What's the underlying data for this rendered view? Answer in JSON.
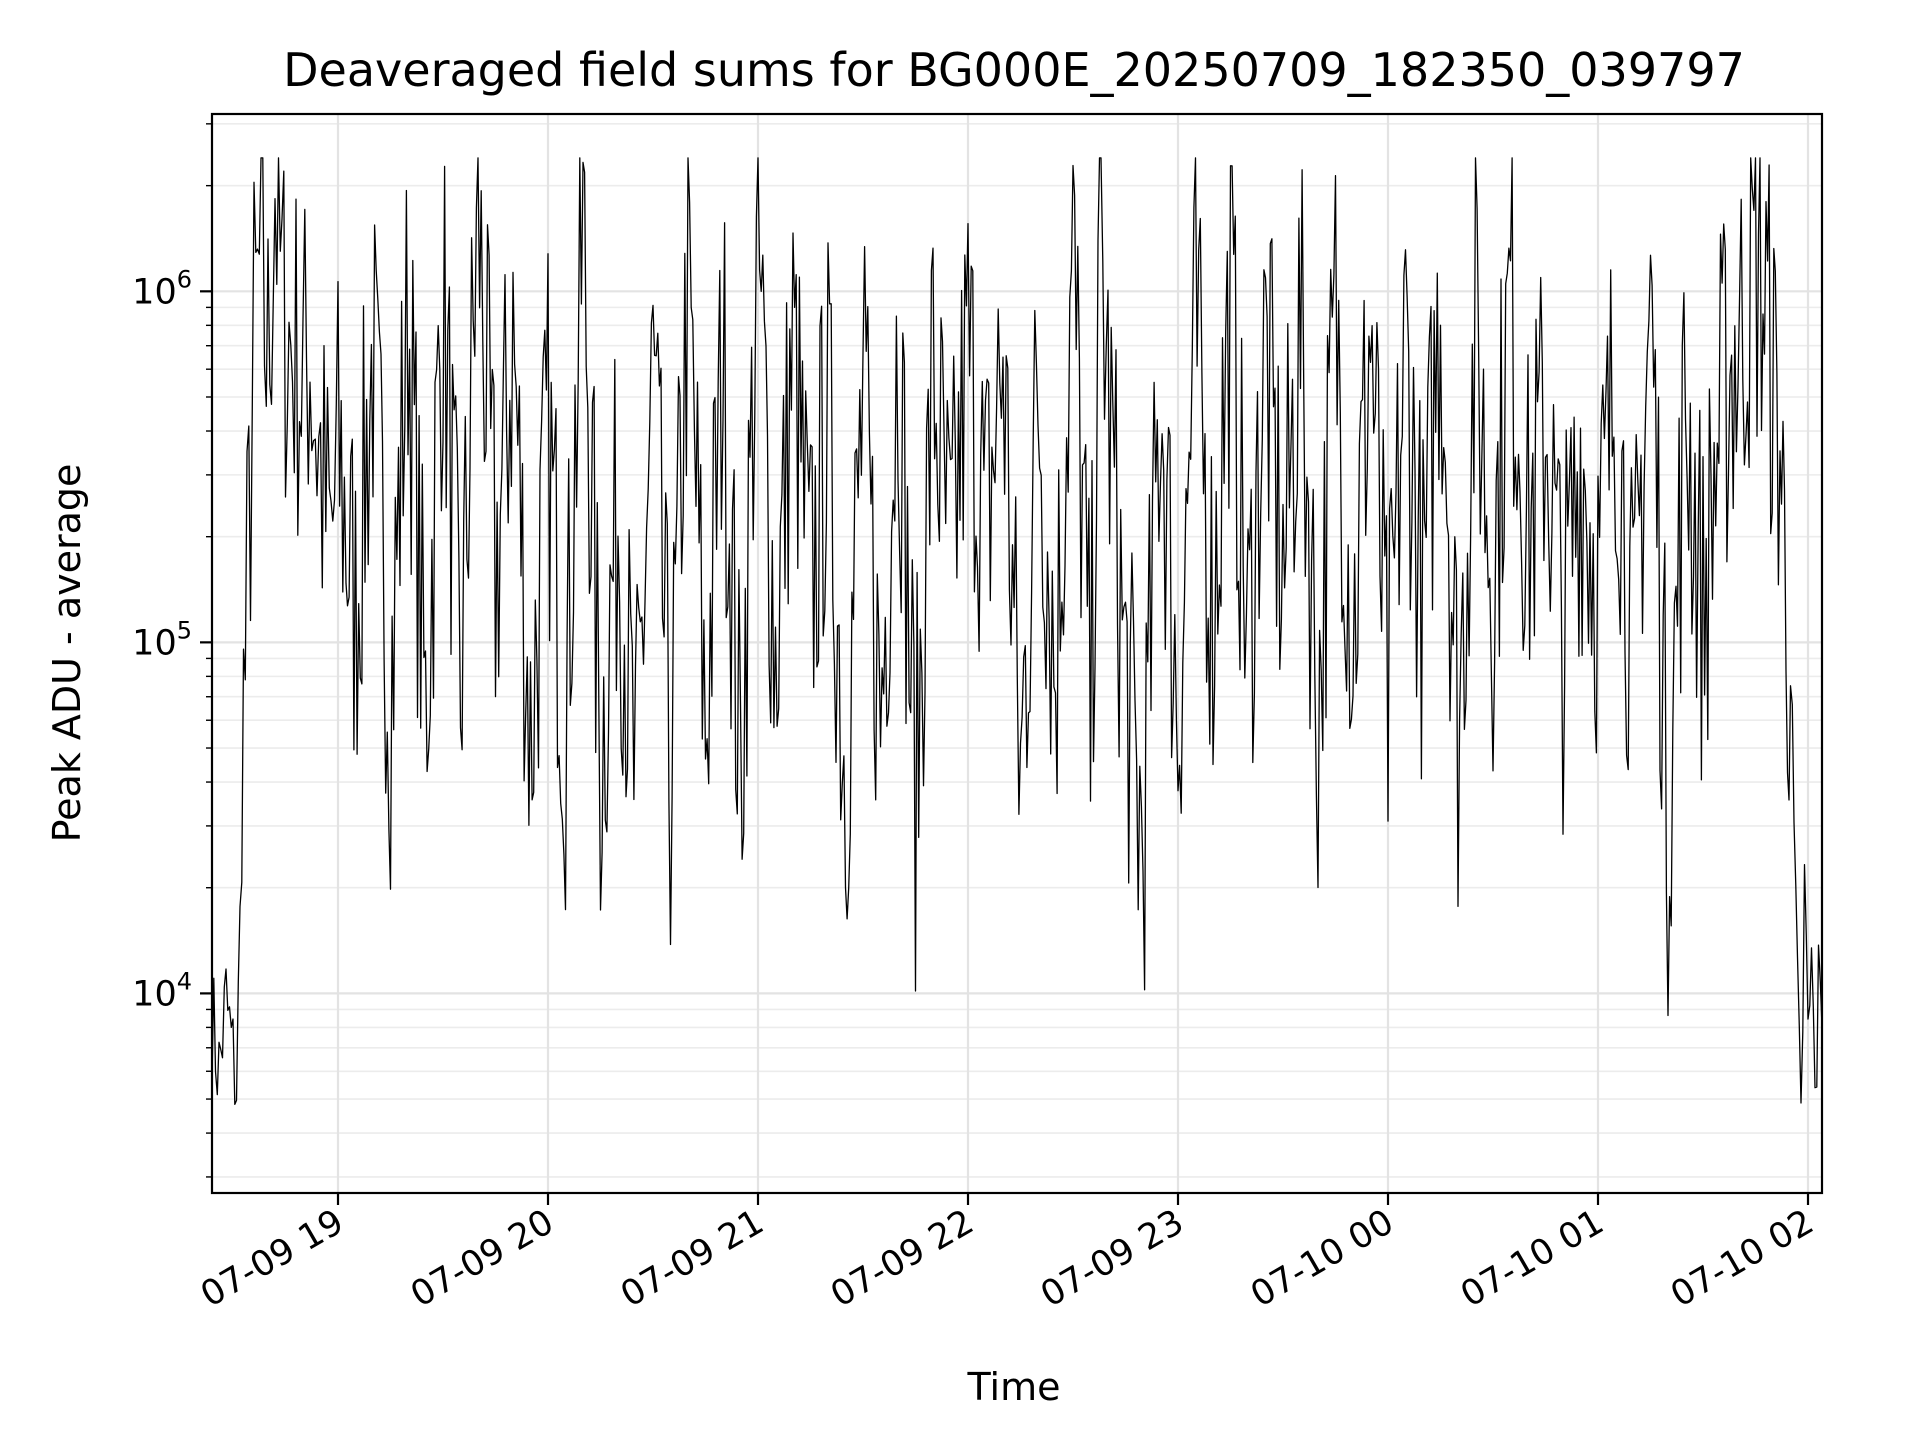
{
  "chart_data": {
    "type": "line",
    "title": "Deaveraged field sums for BG000E_20250709_182350_039797",
    "xlabel": "Time",
    "ylabel": "Peak ADU - average",
    "yscale": "log",
    "xlim": [
      "2025-07-09 18:24",
      "2025-07-10 02:04"
    ],
    "ylim": [
      2700,
      3200000
    ],
    "grid": true,
    "line_color": "#000000",
    "x_ticks": [
      {
        "value": "2025-07-09 19:00",
        "label": "07-09 19"
      },
      {
        "value": "2025-07-09 20:00",
        "label": "07-09 20"
      },
      {
        "value": "2025-07-09 21:00",
        "label": "07-09 21"
      },
      {
        "value": "2025-07-09 22:00",
        "label": "07-09 22"
      },
      {
        "value": "2025-07-09 23:00",
        "label": "07-09 23"
      },
      {
        "value": "2025-07-10 00:00",
        "label": "07-10 00"
      },
      {
        "value": "2025-07-10 01:00",
        "label": "07-10 01"
      },
      {
        "value": "2025-07-10 02:00",
        "label": "07-10 02"
      }
    ],
    "y_ticks": [
      {
        "value": 10000,
        "base": "10",
        "exp": "4"
      },
      {
        "value": 100000,
        "base": "10",
        "exp": "5"
      },
      {
        "value": 1000000,
        "base": "10",
        "exp": "6"
      }
    ],
    "series": [
      {
        "points": [
          [
            "2025-07-09 18:24",
            8500
          ],
          [
            "2025-07-09 18:26",
            6000
          ],
          [
            "2025-07-09 18:28",
            9500
          ],
          [
            "2025-07-09 18:30",
            6500
          ],
          [
            "2025-07-09 18:31",
            5500
          ],
          [
            "2025-07-09 18:32",
            15000
          ],
          [
            "2025-07-09 18:33",
            60000
          ],
          [
            "2025-07-09 18:34",
            120000
          ],
          [
            "2025-07-09 18:35",
            300000
          ],
          [
            "2025-07-09 18:36",
            700000
          ],
          [
            "2025-07-09 18:38",
            1200000
          ],
          [
            "2025-07-09 18:40",
            600000
          ],
          [
            "2025-07-09 18:42",
            2200000
          ],
          [
            "2025-07-09 18:44",
            900000
          ],
          [
            "2025-07-09 18:46",
            700000
          ],
          [
            "2025-07-09 18:48",
            650000
          ],
          [
            "2025-07-09 18:50",
            550000
          ],
          [
            "2025-07-09 18:52",
            700000
          ],
          [
            "2025-07-09 18:54",
            400000
          ],
          [
            "2025-07-09 18:56",
            250000
          ],
          [
            "2025-07-09 18:58",
            180000
          ],
          [
            "2025-07-09 19:00",
            350000
          ],
          [
            "2025-07-09 19:05",
            120000
          ],
          [
            "2025-07-09 19:10",
            650000
          ],
          [
            "2025-07-09 19:15",
            70000
          ],
          [
            "2025-07-09 19:20",
            900000
          ],
          [
            "2025-07-09 19:25",
            60000
          ],
          [
            "2025-07-09 19:30",
            1000000
          ],
          [
            "2025-07-09 19:35",
            70000
          ],
          [
            "2025-07-09 19:40",
            1700000
          ],
          [
            "2025-07-09 19:45",
            150000
          ],
          [
            "2025-07-09 19:50",
            750000
          ],
          [
            "2025-07-09 19:55",
            50000
          ],
          [
            "2025-07-09 20:00",
            400000
          ],
          [
            "2025-07-09 20:05",
            60000
          ],
          [
            "2025-07-09 20:10",
            1500000
          ],
          [
            "2025-07-09 20:15",
            45000
          ],
          [
            "2025-07-09 20:20",
            250000
          ],
          [
            "2025-07-09 20:25",
            35000
          ],
          [
            "2025-07-09 20:30",
            600000
          ],
          [
            "2025-07-09 20:35",
            40000
          ],
          [
            "2025-07-09 20:40",
            1100000
          ],
          [
            "2025-07-09 20:45",
            55000
          ],
          [
            "2025-07-09 20:50",
            700000
          ],
          [
            "2025-07-09 20:55",
            40000
          ],
          [
            "2025-07-09 21:00",
            1300000
          ],
          [
            "2025-07-09 21:05",
            90000
          ],
          [
            "2025-07-09 21:10",
            700000
          ],
          [
            "2025-07-09 21:15",
            130000
          ],
          [
            "2025-07-09 21:20",
            450000
          ],
          [
            "2025-07-09 21:25",
            40000
          ],
          [
            "2025-07-09 21:30",
            500000
          ],
          [
            "2025-07-09 21:35",
            60000
          ],
          [
            "2025-07-09 21:40",
            750000
          ],
          [
            "2025-07-09 21:45",
            35000
          ],
          [
            "2025-07-09 21:50",
            600000
          ],
          [
            "2025-07-09 21:55",
            150000
          ],
          [
            "2025-07-09 22:00",
            700000
          ],
          [
            "2025-07-09 22:05",
            200000
          ],
          [
            "2025-07-09 22:10",
            650000
          ],
          [
            "2025-07-09 22:15",
            40000
          ],
          [
            "2025-07-09 22:20",
            550000
          ],
          [
            "2025-07-09 22:25",
            80000
          ],
          [
            "2025-07-09 22:30",
            1200000
          ],
          [
            "2025-07-09 22:35",
            60000
          ],
          [
            "2025-07-09 22:38",
            1400000
          ],
          [
            "2025-07-09 22:40",
            500000
          ],
          [
            "2025-07-09 22:45",
            80000
          ],
          [
            "2025-07-09 22:50",
            26000
          ],
          [
            "2025-07-09 22:55",
            550000
          ],
          [
            "2025-07-09 23:00",
            60000
          ],
          [
            "2025-07-09 23:05",
            800000
          ],
          [
            "2025-07-09 23:10",
            120000
          ],
          [
            "2025-07-09 23:15",
            1000000
          ],
          [
            "2025-07-09 23:20",
            90000
          ],
          [
            "2025-07-09 23:25",
            700000
          ],
          [
            "2025-07-09 23:30",
            150000
          ],
          [
            "2025-07-09 23:35",
            800000
          ],
          [
            "2025-07-09 23:40",
            60000
          ],
          [
            "2025-07-09 23:45",
            900000
          ],
          [
            "2025-07-09 23:50",
            100000
          ],
          [
            "2025-07-09 23:55",
            800000
          ],
          [
            "2025-07-10 00:00",
            60000
          ],
          [
            "2025-07-10 00:05",
            700000
          ],
          [
            "2025-07-10 00:10",
            120000
          ],
          [
            "2025-07-10 00:15",
            1000000
          ],
          [
            "2025-07-10 00:20",
            55000
          ],
          [
            "2025-07-10 00:25",
            750000
          ],
          [
            "2025-07-10 00:30",
            150000
          ],
          [
            "2025-07-10 00:35",
            1000000
          ],
          [
            "2025-07-10 00:40",
            200000
          ],
          [
            "2025-07-10 00:45",
            450000
          ],
          [
            "2025-07-10 00:50",
            100000
          ],
          [
            "2025-07-10 00:55",
            350000
          ],
          [
            "2025-07-10 01:00",
            150000
          ],
          [
            "2025-07-10 01:05",
            600000
          ],
          [
            "2025-07-10 01:10",
            80000
          ],
          [
            "2025-07-10 01:15",
            1000000
          ],
          [
            "2025-07-10 01:20",
            30000
          ],
          [
            "2025-07-10 01:25",
            500000
          ],
          [
            "2025-07-10 01:30",
            120000
          ],
          [
            "2025-07-10 01:35",
            450000
          ],
          [
            "2025-07-10 01:40",
            700000
          ],
          [
            "2025-07-10 01:45",
            1200000
          ],
          [
            "2025-07-10 01:48",
            900000
          ],
          [
            "2025-07-10 01:52",
            350000
          ],
          [
            "2025-07-10 01:55",
            80000
          ],
          [
            "2025-07-10 01:57",
            9000
          ],
          [
            "2025-07-10 01:58",
            4000
          ],
          [
            "2025-07-10 01:59",
            20000
          ],
          [
            "2025-07-10 02:00",
            7000
          ],
          [
            "2025-07-10 02:01",
            12000
          ],
          [
            "2025-07-10 02:02",
            5000
          ],
          [
            "2025-07-10 02:03",
            10000
          ],
          [
            "2025-07-10 02:04",
            8000
          ]
        ]
      }
    ]
  }
}
